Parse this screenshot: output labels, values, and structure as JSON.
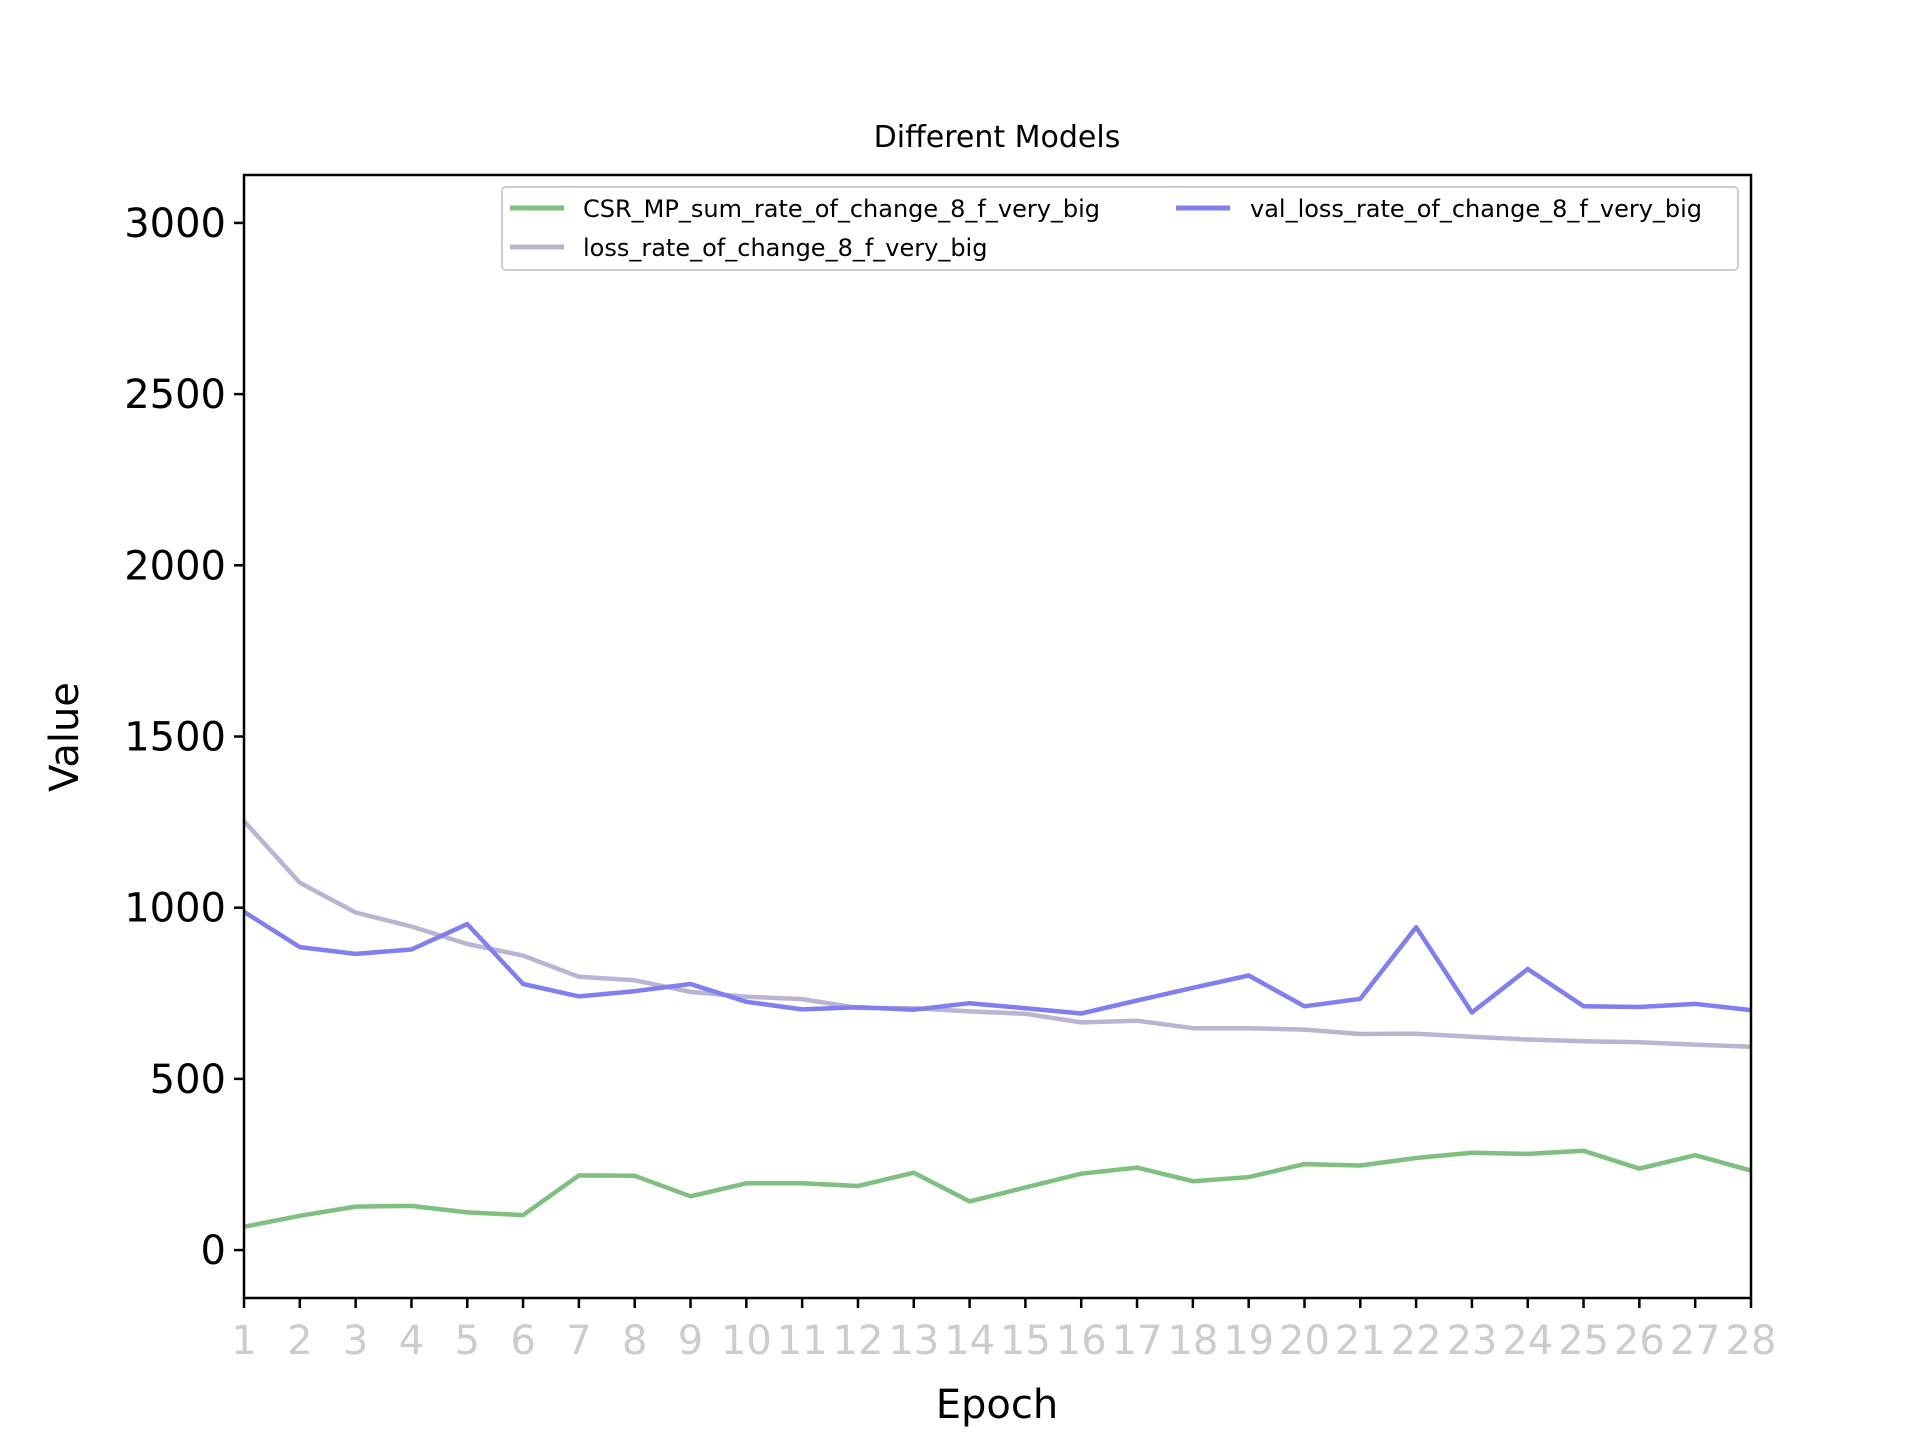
{
  "chart_data": {
    "type": "line",
    "title": "Different Models",
    "xlabel": "Epoch",
    "ylabel": "Value",
    "x": [
      1,
      2,
      3,
      4,
      5,
      6,
      7,
      8,
      9,
      10,
      11,
      12,
      13,
      14,
      15,
      16,
      17,
      18,
      19,
      20,
      21,
      22,
      23,
      24,
      25,
      26,
      27,
      28
    ],
    "xticks": [
      "1",
      "2",
      "3",
      "4",
      "5",
      "6",
      "7",
      "8",
      "9",
      "10",
      "11",
      "12",
      "13",
      "14",
      "15",
      "16",
      "17",
      "18",
      "19",
      "20",
      "21",
      "22",
      "23",
      "24",
      "25",
      "26",
      "27",
      "28"
    ],
    "yticks": [
      0,
      500,
      1000,
      1500,
      2000,
      2500,
      3000
    ],
    "ylim": [
      -140,
      3140
    ],
    "grid": false,
    "legend_placement": "top-right",
    "series": [
      {
        "name": "CSR_MP_sum_rate_of_change_8_f_very_big",
        "color": "#7fbf7f",
        "values": [
          68,
          100,
          127,
          129,
          110,
          102,
          218,
          217,
          157,
          195,
          195,
          187,
          226,
          142,
          183,
          223,
          241,
          201,
          213,
          251,
          247,
          269,
          284,
          281,
          290,
          238,
          277,
          232
        ]
      },
      {
        "name": "val_loss_rate_of_change_8_f_very_big",
        "color": "#7f7ff0",
        "values": [
          988,
          885,
          865,
          878,
          952,
          777,
          741,
          756,
          777,
          725,
          703,
          709,
          702,
          721,
          706,
          691,
          729,
          766,
          802,
          712,
          734,
          943,
          694,
          821,
          712,
          710,
          719,
          701
        ]
      },
      {
        "name": "loss_rate_of_change_8_f_very_big",
        "color": "#b8b4d2",
        "values": [
          1253,
          1073,
          986,
          945,
          894,
          860,
          798,
          788,
          754,
          740,
          733,
          707,
          706,
          697,
          690,
          665,
          670,
          648,
          648,
          644,
          631,
          632,
          623,
          615,
          610,
          607,
          600,
          594
        ]
      }
    ],
    "colors": {
      "axis": "#000000",
      "xtick_label": "#cccccc",
      "legend_border": "#cccccc"
    }
  }
}
